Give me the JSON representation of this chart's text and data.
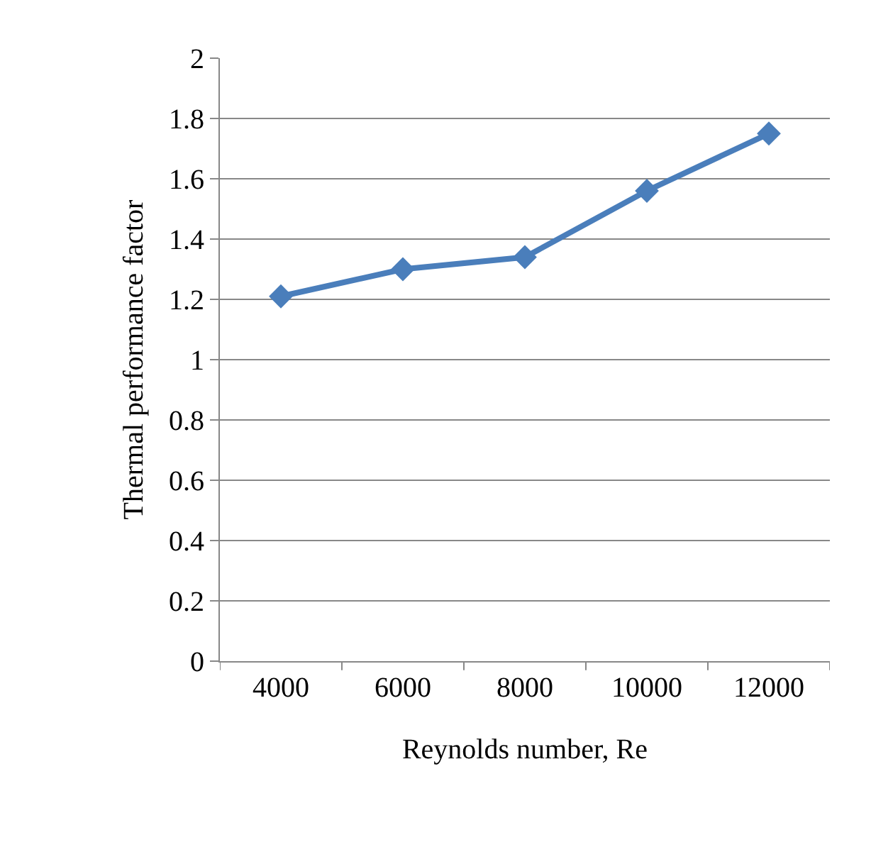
{
  "chart_data": {
    "type": "line",
    "xlabel": "Reynolds number, Re",
    "ylabel": "Thermal performance factor",
    "categories": [
      "4000",
      "6000",
      "8000",
      "10000",
      "12000"
    ],
    "series": [
      {
        "color": "#4a7ebb",
        "values": [
          1.21,
          1.3,
          1.34,
          1.56,
          1.75
        ]
      }
    ],
    "ylim": [
      0,
      2
    ],
    "yticks": [
      0,
      0.2,
      0.4,
      0.6,
      0.8,
      1,
      1.2,
      1.4,
      1.6,
      1.8,
      2
    ],
    "grid": "y",
    "marker": "diamond",
    "line_style": "solid"
  }
}
